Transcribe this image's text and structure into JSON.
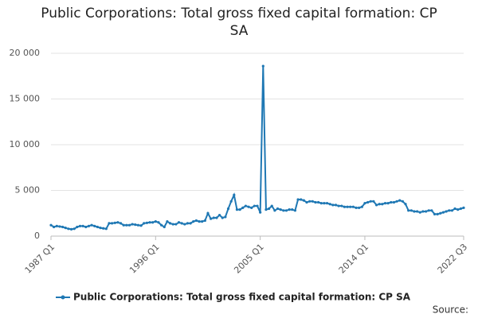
{
  "chart_data": {
    "type": "line",
    "title": "Public Corporations: Total gross fixed capital formation: CP SA",
    "source": "Source:",
    "categories": [
      "1987 Q1",
      null,
      null,
      null,
      null,
      null,
      null,
      null,
      null,
      null,
      null,
      null,
      null,
      null,
      null,
      null,
      null,
      null,
      null,
      null,
      null,
      null,
      null,
      null,
      null,
      null,
      null,
      null,
      null,
      null,
      null,
      null,
      null,
      null,
      null,
      null,
      "1996 Q1",
      null,
      null,
      null,
      null,
      null,
      null,
      null,
      null,
      null,
      null,
      null,
      null,
      null,
      null,
      null,
      null,
      null,
      null,
      null,
      null,
      null,
      null,
      null,
      null,
      null,
      null,
      null,
      null,
      null,
      null,
      null,
      null,
      null,
      null,
      null,
      "2005 Q1",
      null,
      null,
      null,
      null,
      null,
      null,
      null,
      null,
      null,
      null,
      null,
      null,
      null,
      null,
      null,
      null,
      null,
      null,
      null,
      null,
      null,
      null,
      null,
      null,
      null,
      null,
      null,
      null,
      null,
      null,
      null,
      null,
      null,
      null,
      null,
      "2014 Q1",
      null,
      null,
      null,
      null,
      null,
      null,
      null,
      null,
      null,
      null,
      null,
      null,
      null,
      null,
      null,
      null,
      null,
      null,
      null,
      null,
      null,
      null,
      null,
      null,
      null,
      null,
      null,
      null,
      null,
      null,
      null,
      null,
      null,
      "2022 Q3"
    ],
    "series": [
      {
        "name": "Public Corporations: Total gross fixed capital formation: CP SA",
        "color": "#1f78b4",
        "values": [
          1200,
          1000,
          1100,
          1050,
          1000,
          900,
          800,
          750,
          800,
          1000,
          1100,
          1100,
          1000,
          1100,
          1200,
          1100,
          1000,
          900,
          850,
          800,
          1400,
          1400,
          1450,
          1500,
          1400,
          1200,
          1200,
          1200,
          1300,
          1250,
          1200,
          1150,
          1400,
          1450,
          1500,
          1500,
          1600,
          1500,
          1200,
          1000,
          1600,
          1400,
          1300,
          1300,
          1500,
          1400,
          1300,
          1400,
          1400,
          1600,
          1700,
          1600,
          1600,
          1700,
          2500,
          1900,
          2000,
          2000,
          2300,
          2000,
          2100,
          3000,
          3800,
          4500,
          2900,
          2900,
          3100,
          3300,
          3200,
          3100,
          3300,
          3300,
          2600,
          18600,
          2900,
          3000,
          3300,
          2800,
          3000,
          2900,
          2800,
          2800,
          2900,
          2900,
          2800,
          4000,
          4000,
          3900,
          3700,
          3800,
          3800,
          3700,
          3700,
          3600,
          3600,
          3600,
          3500,
          3400,
          3400,
          3300,
          3300,
          3200,
          3200,
          3200,
          3200,
          3100,
          3100,
          3200,
          3600,
          3700,
          3800,
          3800,
          3400,
          3500,
          3500,
          3600,
          3600,
          3700,
          3700,
          3800,
          3900,
          3800,
          3500,
          2800,
          2800,
          2700,
          2700,
          2600,
          2700,
          2700,
          2800,
          2800,
          2400,
          2400,
          2500,
          2600,
          2700,
          2800,
          2800,
          3000,
          2900,
          3000,
          3100
        ]
      }
    ],
    "ylim": [
      0,
      20000
    ],
    "yticks": [
      0,
      {
        "value": 5000,
        "label": "5 000"
      },
      {
        "value": 10000,
        "label": "10 000"
      },
      {
        "value": 15000,
        "label": "15 000"
      },
      {
        "value": 20000,
        "label": "20 000"
      }
    ],
    "grid": true,
    "legend": "bottom"
  }
}
